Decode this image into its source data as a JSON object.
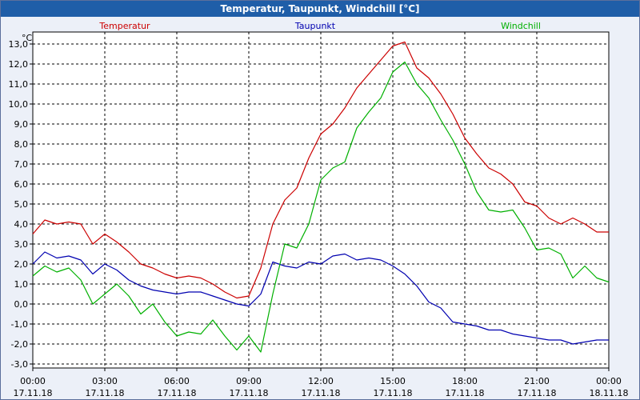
{
  "window": {
    "title": "Temperatur, Taupunkt, Windchill [°C]"
  },
  "colors": {
    "background": "#ecf0f8",
    "titlebar": "#1f5ea8",
    "plot_area": "#ffffff",
    "temperatur": "#cc0000",
    "taupunkt": "#0000b0",
    "windchill": "#00b000"
  },
  "chart_data": {
    "type": "line",
    "title": "Temperatur, Taupunkt, Windchill [°C]",
    "ylabel": "°C",
    "xlabel": "",
    "ylim": [
      -3.2,
      13.6
    ],
    "xlim": [
      0,
      24
    ],
    "grid": true,
    "yticks": [
      -3,
      -2,
      -1,
      0,
      1,
      2,
      3,
      4,
      5,
      6,
      7,
      8,
      9,
      10,
      11,
      12,
      13
    ],
    "ytick_labels": [
      "-3,0",
      "-2,0",
      "-1,0",
      "0,0",
      "1,0",
      "2,0",
      "3,0",
      "4,0",
      "5,0",
      "6,0",
      "7,0",
      "8,0",
      "9,0",
      "10,0",
      "11,0",
      "12,0",
      "13,0"
    ],
    "xticks": [
      {
        "pos": 0,
        "time": "00:00",
        "date": "17.11.18"
      },
      {
        "pos": 3,
        "time": "03:00",
        "date": "17.11.18"
      },
      {
        "pos": 6,
        "time": "06:00",
        "date": "17.11.18"
      },
      {
        "pos": 9,
        "time": "09:00",
        "date": "17.11.18"
      },
      {
        "pos": 12,
        "time": "12:00",
        "date": "17.11.18"
      },
      {
        "pos": 15,
        "time": "15:00",
        "date": "17.11.18"
      },
      {
        "pos": 18,
        "time": "18:00",
        "date": "17.11.18"
      },
      {
        "pos": 21,
        "time": "21:00",
        "date": "17.11.18"
      },
      {
        "pos": 24,
        "time": "00:00",
        "date": "18.11.18"
      }
    ],
    "x": [
      0,
      0.5,
      1,
      1.5,
      2,
      2.5,
      3,
      3.5,
      4,
      4.5,
      5,
      5.5,
      6,
      6.5,
      7,
      7.5,
      8,
      8.5,
      9,
      9.5,
      10,
      10.5,
      11,
      11.5,
      12,
      12.5,
      13,
      13.5,
      14,
      14.5,
      15,
      15.5,
      16,
      16.5,
      17,
      17.5,
      18,
      18.5,
      19,
      19.5,
      20,
      20.5,
      21,
      21.5,
      22,
      22.5,
      23,
      23.5,
      24
    ],
    "series": [
      {
        "name": "Temperatur",
        "legend_position": "left",
        "values": [
          3.5,
          4.2,
          4.0,
          4.1,
          4.0,
          3.0,
          3.5,
          3.1,
          2.6,
          2.0,
          1.8,
          1.5,
          1.3,
          1.4,
          1.3,
          1.0,
          0.6,
          0.3,
          0.4,
          1.8,
          4.0,
          5.2,
          5.8,
          7.3,
          8.5,
          9.0,
          9.8,
          10.8,
          11.5,
          12.2,
          12.9,
          13.1,
          11.8,
          11.3,
          10.5,
          9.5,
          8.3,
          7.5,
          6.8,
          6.5,
          6.0,
          5.1,
          4.9,
          4.3,
          4.0,
          4.3,
          4.0,
          3.6,
          3.6
        ]
      },
      {
        "name": "Taupunkt",
        "legend_position": "center",
        "values": [
          2.0,
          2.6,
          2.3,
          2.4,
          2.2,
          1.5,
          2.0,
          1.7,
          1.2,
          0.9,
          0.7,
          0.6,
          0.5,
          0.6,
          0.6,
          0.4,
          0.2,
          0.0,
          -0.1,
          0.5,
          2.1,
          1.9,
          1.8,
          2.1,
          2.0,
          2.4,
          2.5,
          2.2,
          2.3,
          2.2,
          1.9,
          1.5,
          0.9,
          0.1,
          -0.2,
          -0.9,
          -1.0,
          -1.1,
          -1.3,
          -1.3,
          -1.5,
          -1.6,
          -1.7,
          -1.8,
          -1.8,
          -2.0,
          -1.9,
          -1.8,
          -1.8
        ]
      },
      {
        "name": "Windchill",
        "legend_position": "right",
        "values": [
          1.4,
          1.9,
          1.6,
          1.8,
          1.2,
          0.0,
          0.5,
          1.0,
          0.4,
          -0.5,
          0.0,
          -0.9,
          -1.6,
          -1.4,
          -1.5,
          -0.8,
          -1.6,
          -2.3,
          -1.6,
          -2.4,
          0.5,
          3.0,
          2.8,
          4.0,
          6.2,
          6.8,
          7.1,
          8.8,
          9.6,
          10.3,
          11.6,
          12.1,
          11.0,
          10.3,
          9.2,
          8.2,
          7.0,
          5.6,
          4.7,
          4.6,
          4.7,
          3.8,
          2.7,
          2.8,
          2.5,
          1.3,
          1.9,
          1.3,
          1.1
        ]
      }
    ]
  }
}
